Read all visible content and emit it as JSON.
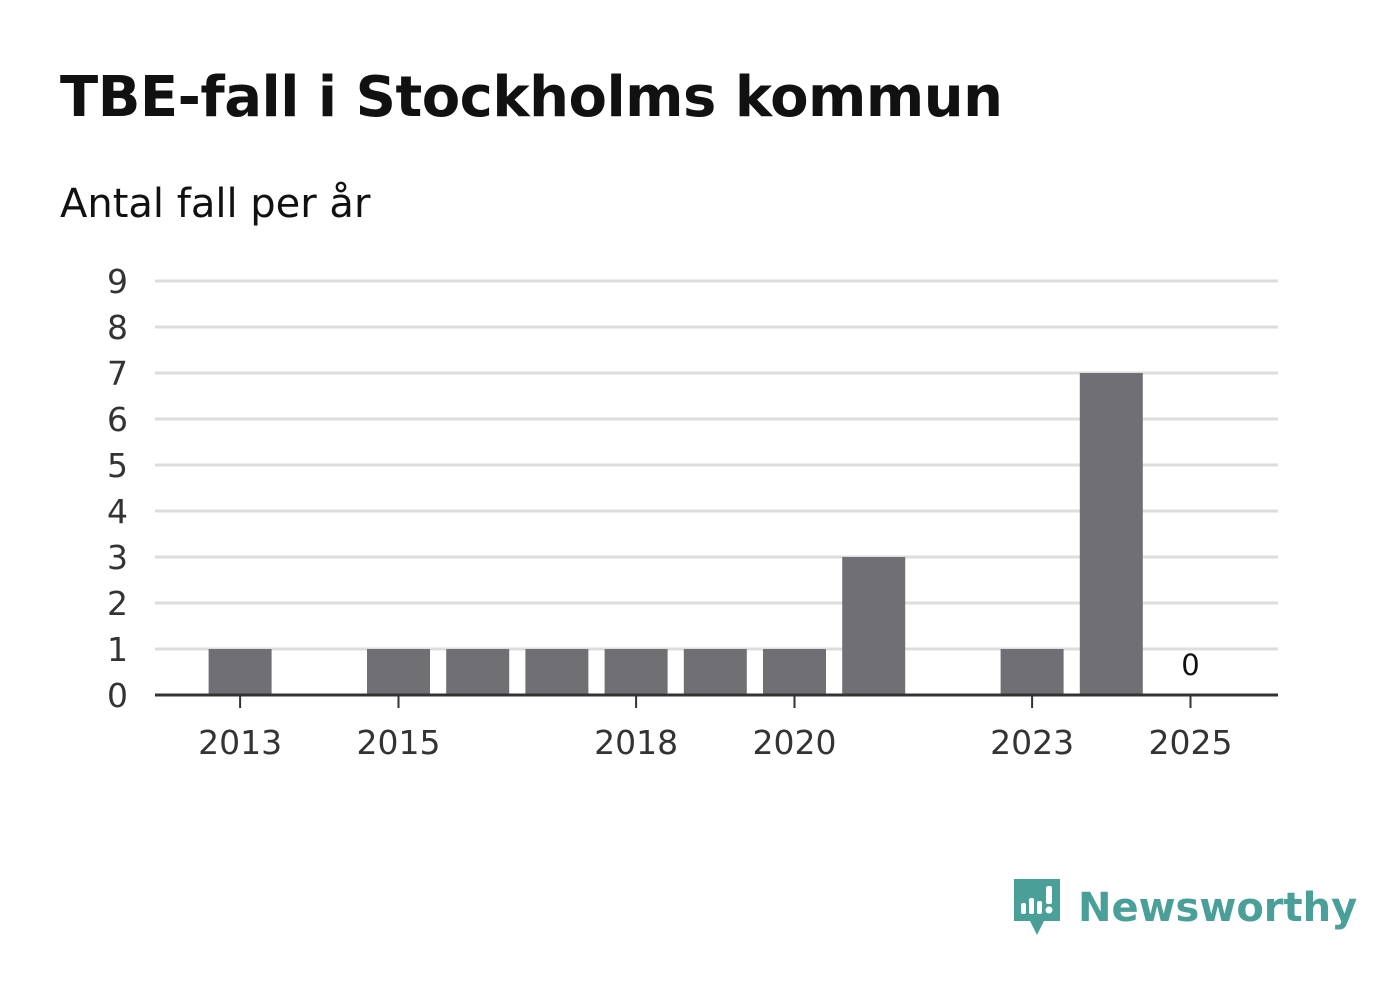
{
  "title": "TBE-fall i Stockholms kommun",
  "subtitle": "Antal fall per år",
  "brand": {
    "name": "Newsworthy",
    "color": "#4a9f98",
    "icon": "newsworthy-logo-icon"
  },
  "colors": {
    "bar": "#706f74",
    "grid": "#dddddd",
    "axis": "#333333"
  },
  "chart_data": {
    "type": "bar",
    "title": "TBE-fall i Stockholms kommun",
    "subtitle": "Antal fall per år",
    "xlabel": "",
    "ylabel": "",
    "categories": [
      "2013",
      "2014",
      "2015",
      "2016",
      "2017",
      "2018",
      "2019",
      "2020",
      "2021",
      "2022",
      "2023",
      "2024",
      "2025"
    ],
    "values": [
      1,
      0,
      1,
      1,
      1,
      1,
      1,
      1,
      3,
      0,
      1,
      7,
      0
    ],
    "ylim": [
      0,
      9
    ],
    "yticks": [
      0,
      1,
      2,
      3,
      4,
      5,
      6,
      7,
      8,
      9
    ],
    "xtick_labels": [
      "2013",
      "2015",
      "2018",
      "2020",
      "2023",
      "2025"
    ],
    "grid": true,
    "annotations": [
      {
        "category": "2025",
        "label": "0"
      }
    ]
  }
}
